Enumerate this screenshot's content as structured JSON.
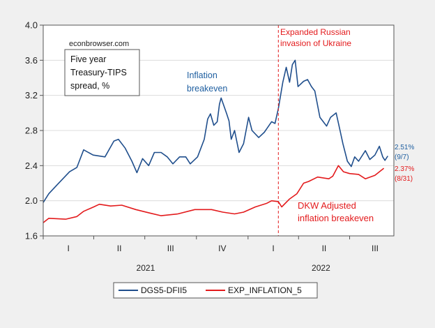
{
  "chart_data": {
    "type": "line",
    "title": "",
    "xlabel": "",
    "ylabel": "",
    "ylim": [
      1.6,
      4.0
    ],
    "yticks": [
      "1.6",
      "2.0",
      "2.4",
      "2.8",
      "3.2",
      "3.6",
      "4.0"
    ],
    "xlim": [
      "2021-01-01",
      "2022-09-27"
    ],
    "quarter_ticks": [
      "I",
      "II",
      "III",
      "IV",
      "I",
      "II",
      "III"
    ],
    "year_labels": [
      "2021",
      "2022"
    ],
    "grid": true,
    "legend_placement": "bottom",
    "colors": {
      "blue": "#1f4e8c",
      "red": "#e31a1c",
      "background": "#f0f0f0",
      "grid": "#dcdcdc"
    },
    "watermark": "econbrowser.com",
    "boxed_note": [
      "Five year",
      "Treasury-TIPS",
      "spread, %"
    ],
    "annotations": {
      "blue_label": [
        "Inflation",
        "breakeven"
      ],
      "red_label": [
        "DKW Adjusted",
        "inflation breakeven"
      ],
      "event_label": [
        "Expanded Russian",
        "invasion of Ukraine"
      ],
      "event_date": "2022-02-24",
      "blue_end": [
        "2.51%",
        "(9/7)"
      ],
      "red_end": [
        "2.37%",
        "(8/31)"
      ]
    },
    "series": [
      {
        "name": "DGS5-DFII5",
        "color": "#1f4e8c",
        "points": [
          [
            "2021-01-01",
            1.98
          ],
          [
            "2021-01-11",
            2.08
          ],
          [
            "2021-01-27",
            2.19
          ],
          [
            "2021-02-17",
            2.33
          ],
          [
            "2021-03-02",
            2.38
          ],
          [
            "2021-03-14",
            2.58
          ],
          [
            "2021-03-31",
            2.52
          ],
          [
            "2021-04-21",
            2.5
          ],
          [
            "2021-05-07",
            2.68
          ],
          [
            "2021-05-15",
            2.7
          ],
          [
            "2021-05-27",
            2.6
          ],
          [
            "2021-06-08",
            2.45
          ],
          [
            "2021-06-17",
            2.32
          ],
          [
            "2021-06-27",
            2.48
          ],
          [
            "2021-07-08",
            2.4
          ],
          [
            "2021-07-18",
            2.55
          ],
          [
            "2021-07-30",
            2.55
          ],
          [
            "2021-08-10",
            2.5
          ],
          [
            "2021-08-20",
            2.42
          ],
          [
            "2021-09-01",
            2.5
          ],
          [
            "2021-09-12",
            2.5
          ],
          [
            "2021-09-20",
            2.42
          ],
          [
            "2021-10-03",
            2.5
          ],
          [
            "2021-10-15",
            2.7
          ],
          [
            "2021-10-21",
            2.93
          ],
          [
            "2021-10-26",
            2.99
          ],
          [
            "2021-11-01",
            2.86
          ],
          [
            "2021-11-07",
            2.9
          ],
          [
            "2021-11-11",
            3.1
          ],
          [
            "2021-11-14",
            3.17
          ],
          [
            "2021-11-24",
            2.99
          ],
          [
            "2021-11-28",
            2.91
          ],
          [
            "2021-12-02",
            2.7
          ],
          [
            "2021-12-08",
            2.8
          ],
          [
            "2021-12-16",
            2.55
          ],
          [
            "2021-12-24",
            2.65
          ],
          [
            "2022-01-02",
            2.95
          ],
          [
            "2022-01-08",
            2.8
          ],
          [
            "2022-01-20",
            2.72
          ],
          [
            "2022-01-30",
            2.78
          ],
          [
            "2022-02-12",
            2.9
          ],
          [
            "2022-02-18",
            2.88
          ],
          [
            "2022-02-24",
            3.05
          ],
          [
            "2022-03-04",
            3.35
          ],
          [
            "2022-03-10",
            3.52
          ],
          [
            "2022-03-16",
            3.35
          ],
          [
            "2022-03-21",
            3.55
          ],
          [
            "2022-03-26",
            3.6
          ],
          [
            "2022-03-31",
            3.3
          ],
          [
            "2022-04-10",
            3.36
          ],
          [
            "2022-04-17",
            3.38
          ],
          [
            "2022-04-24",
            3.3
          ],
          [
            "2022-04-30",
            3.25
          ],
          [
            "2022-05-09",
            2.95
          ],
          [
            "2022-05-15",
            2.9
          ],
          [
            "2022-05-21",
            2.85
          ],
          [
            "2022-05-28",
            2.95
          ],
          [
            "2022-06-07",
            3.0
          ],
          [
            "2022-06-14",
            2.8
          ],
          [
            "2022-06-19",
            2.65
          ],
          [
            "2022-06-27",
            2.45
          ],
          [
            "2022-07-04",
            2.39
          ],
          [
            "2022-07-10",
            2.5
          ],
          [
            "2022-07-17",
            2.45
          ],
          [
            "2022-07-29",
            2.57
          ],
          [
            "2022-08-06",
            2.47
          ],
          [
            "2022-08-15",
            2.52
          ],
          [
            "2022-08-23",
            2.62
          ],
          [
            "2022-08-29",
            2.5
          ],
          [
            "2022-09-02",
            2.46
          ],
          [
            "2022-09-07",
            2.51
          ]
        ]
      },
      {
        "name": "EXP_INFLATION_5",
        "color": "#e31a1c",
        "points": [
          [
            "2021-01-01",
            1.75
          ],
          [
            "2021-01-11",
            1.8
          ],
          [
            "2021-02-10",
            1.79
          ],
          [
            "2021-03-02",
            1.82
          ],
          [
            "2021-03-14",
            1.88
          ],
          [
            "2021-04-01",
            1.93
          ],
          [
            "2021-04-11",
            1.96
          ],
          [
            "2021-05-01",
            1.94
          ],
          [
            "2021-05-21",
            1.95
          ],
          [
            "2021-06-15",
            1.9
          ],
          [
            "2021-07-10",
            1.86
          ],
          [
            "2021-07-30",
            1.83
          ],
          [
            "2021-08-29",
            1.85
          ],
          [
            "2021-09-28",
            1.9
          ],
          [
            "2021-10-28",
            1.9
          ],
          [
            "2021-11-17",
            1.87
          ],
          [
            "2021-12-08",
            1.85
          ],
          [
            "2021-12-24",
            1.87
          ],
          [
            "2022-01-14",
            1.93
          ],
          [
            "2022-02-03",
            1.97
          ],
          [
            "2022-02-12",
            2.0
          ],
          [
            "2022-02-24",
            1.99
          ],
          [
            "2022-03-02",
            1.93
          ],
          [
            "2022-03-16",
            2.02
          ],
          [
            "2022-03-29",
            2.08
          ],
          [
            "2022-04-10",
            2.2
          ],
          [
            "2022-04-19",
            2.22
          ],
          [
            "2022-05-05",
            2.27
          ],
          [
            "2022-05-25",
            2.25
          ],
          [
            "2022-06-01",
            2.28
          ],
          [
            "2022-06-11",
            2.4
          ],
          [
            "2022-06-20",
            2.33
          ],
          [
            "2022-07-01",
            2.31
          ],
          [
            "2022-07-17",
            2.3
          ],
          [
            "2022-07-29",
            2.25
          ],
          [
            "2022-08-15",
            2.29
          ],
          [
            "2022-08-31",
            2.37
          ]
        ]
      }
    ]
  }
}
